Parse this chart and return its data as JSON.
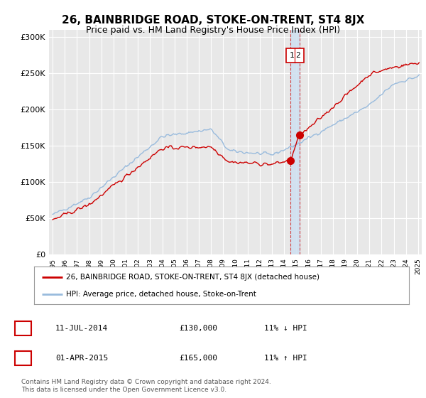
{
  "title": "26, BAINBRIDGE ROAD, STOKE-ON-TRENT, ST4 8JX",
  "subtitle": "Price paid vs. HM Land Registry's House Price Index (HPI)",
  "ylim": [
    0,
    310000
  ],
  "yticks": [
    0,
    50000,
    100000,
    150000,
    200000,
    250000,
    300000
  ],
  "ytick_labels": [
    "£0",
    "£50K",
    "£100K",
    "£150K",
    "£200K",
    "£250K",
    "£300K"
  ],
  "background_color": "#ffffff",
  "plot_bg_color": "#e8e8e8",
  "grid_color": "#ffffff",
  "red_color": "#cc0000",
  "blue_color": "#99bbdd",
  "vband_color": "#d0e0f0",
  "transaction1": {
    "date": "11-JUL-2014",
    "price": 130000,
    "label": "1",
    "hpi_diff": "11% ↓ HPI"
  },
  "transaction2": {
    "date": "01-APR-2015",
    "price": 165000,
    "label": "2",
    "hpi_diff": "11% ↑ HPI"
  },
  "transaction1_x": 2014.53,
  "transaction2_x": 2015.25,
  "legend_line1": "26, BAINBRIDGE ROAD, STOKE-ON-TRENT, ST4 8JX (detached house)",
  "legend_line2": "HPI: Average price, detached house, Stoke-on-Trent",
  "footer": "Contains HM Land Registry data © Crown copyright and database right 2024.\nThis data is licensed under the Open Government Licence v3.0.",
  "title_fontsize": 11,
  "subtitle_fontsize": 9,
  "tick_fontsize": 8,
  "xstart": 1995,
  "xend": 2026
}
